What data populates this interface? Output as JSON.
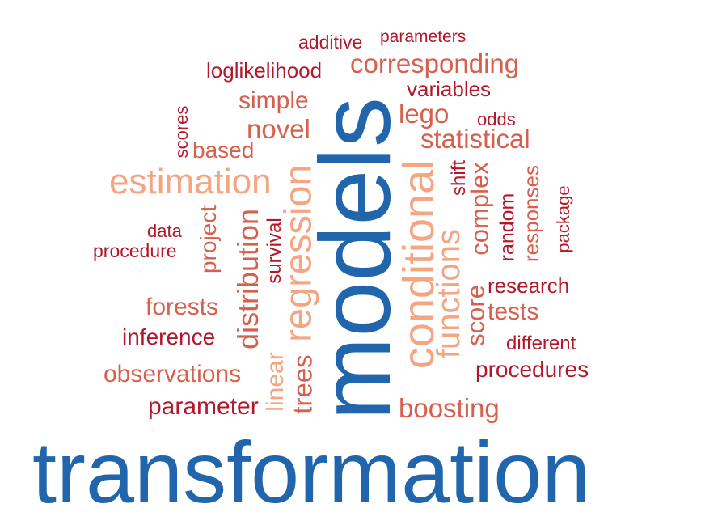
{
  "colors": {
    "dark_blue": "#2166ac",
    "dark_red": "#b2182b",
    "salmon": "#d6604d",
    "peach": "#f4a582"
  },
  "words": {
    "transformation": "transformation",
    "models": "models",
    "conditional": "conditional",
    "regression": "regression",
    "estimation": "estimation",
    "functions": "functions",
    "distribution": "distribution",
    "corresponding": "corresponding",
    "statistical": "statistical",
    "boosting": "boosting",
    "trees": "trees",
    "linear": "linear",
    "complex": "complex",
    "score": "score",
    "novel": "novel",
    "simple": "simple",
    "lego": "lego",
    "based": "based",
    "forests": "forests",
    "observations": "observations",
    "project": "project",
    "tests": "tests",
    "loglikelihood": "loglikelihood",
    "variables": "variables",
    "additive": "additive",
    "parameters": "parameters",
    "odds": "odds",
    "scores": "scores",
    "shift": "shift",
    "random": "random",
    "responses": "responses",
    "package": "package",
    "data": "data",
    "procedure": "procedure",
    "survival": "survival",
    "research": "research",
    "inference": "inference",
    "different": "different",
    "procedures": "procedures",
    "parameter": "parameter"
  }
}
